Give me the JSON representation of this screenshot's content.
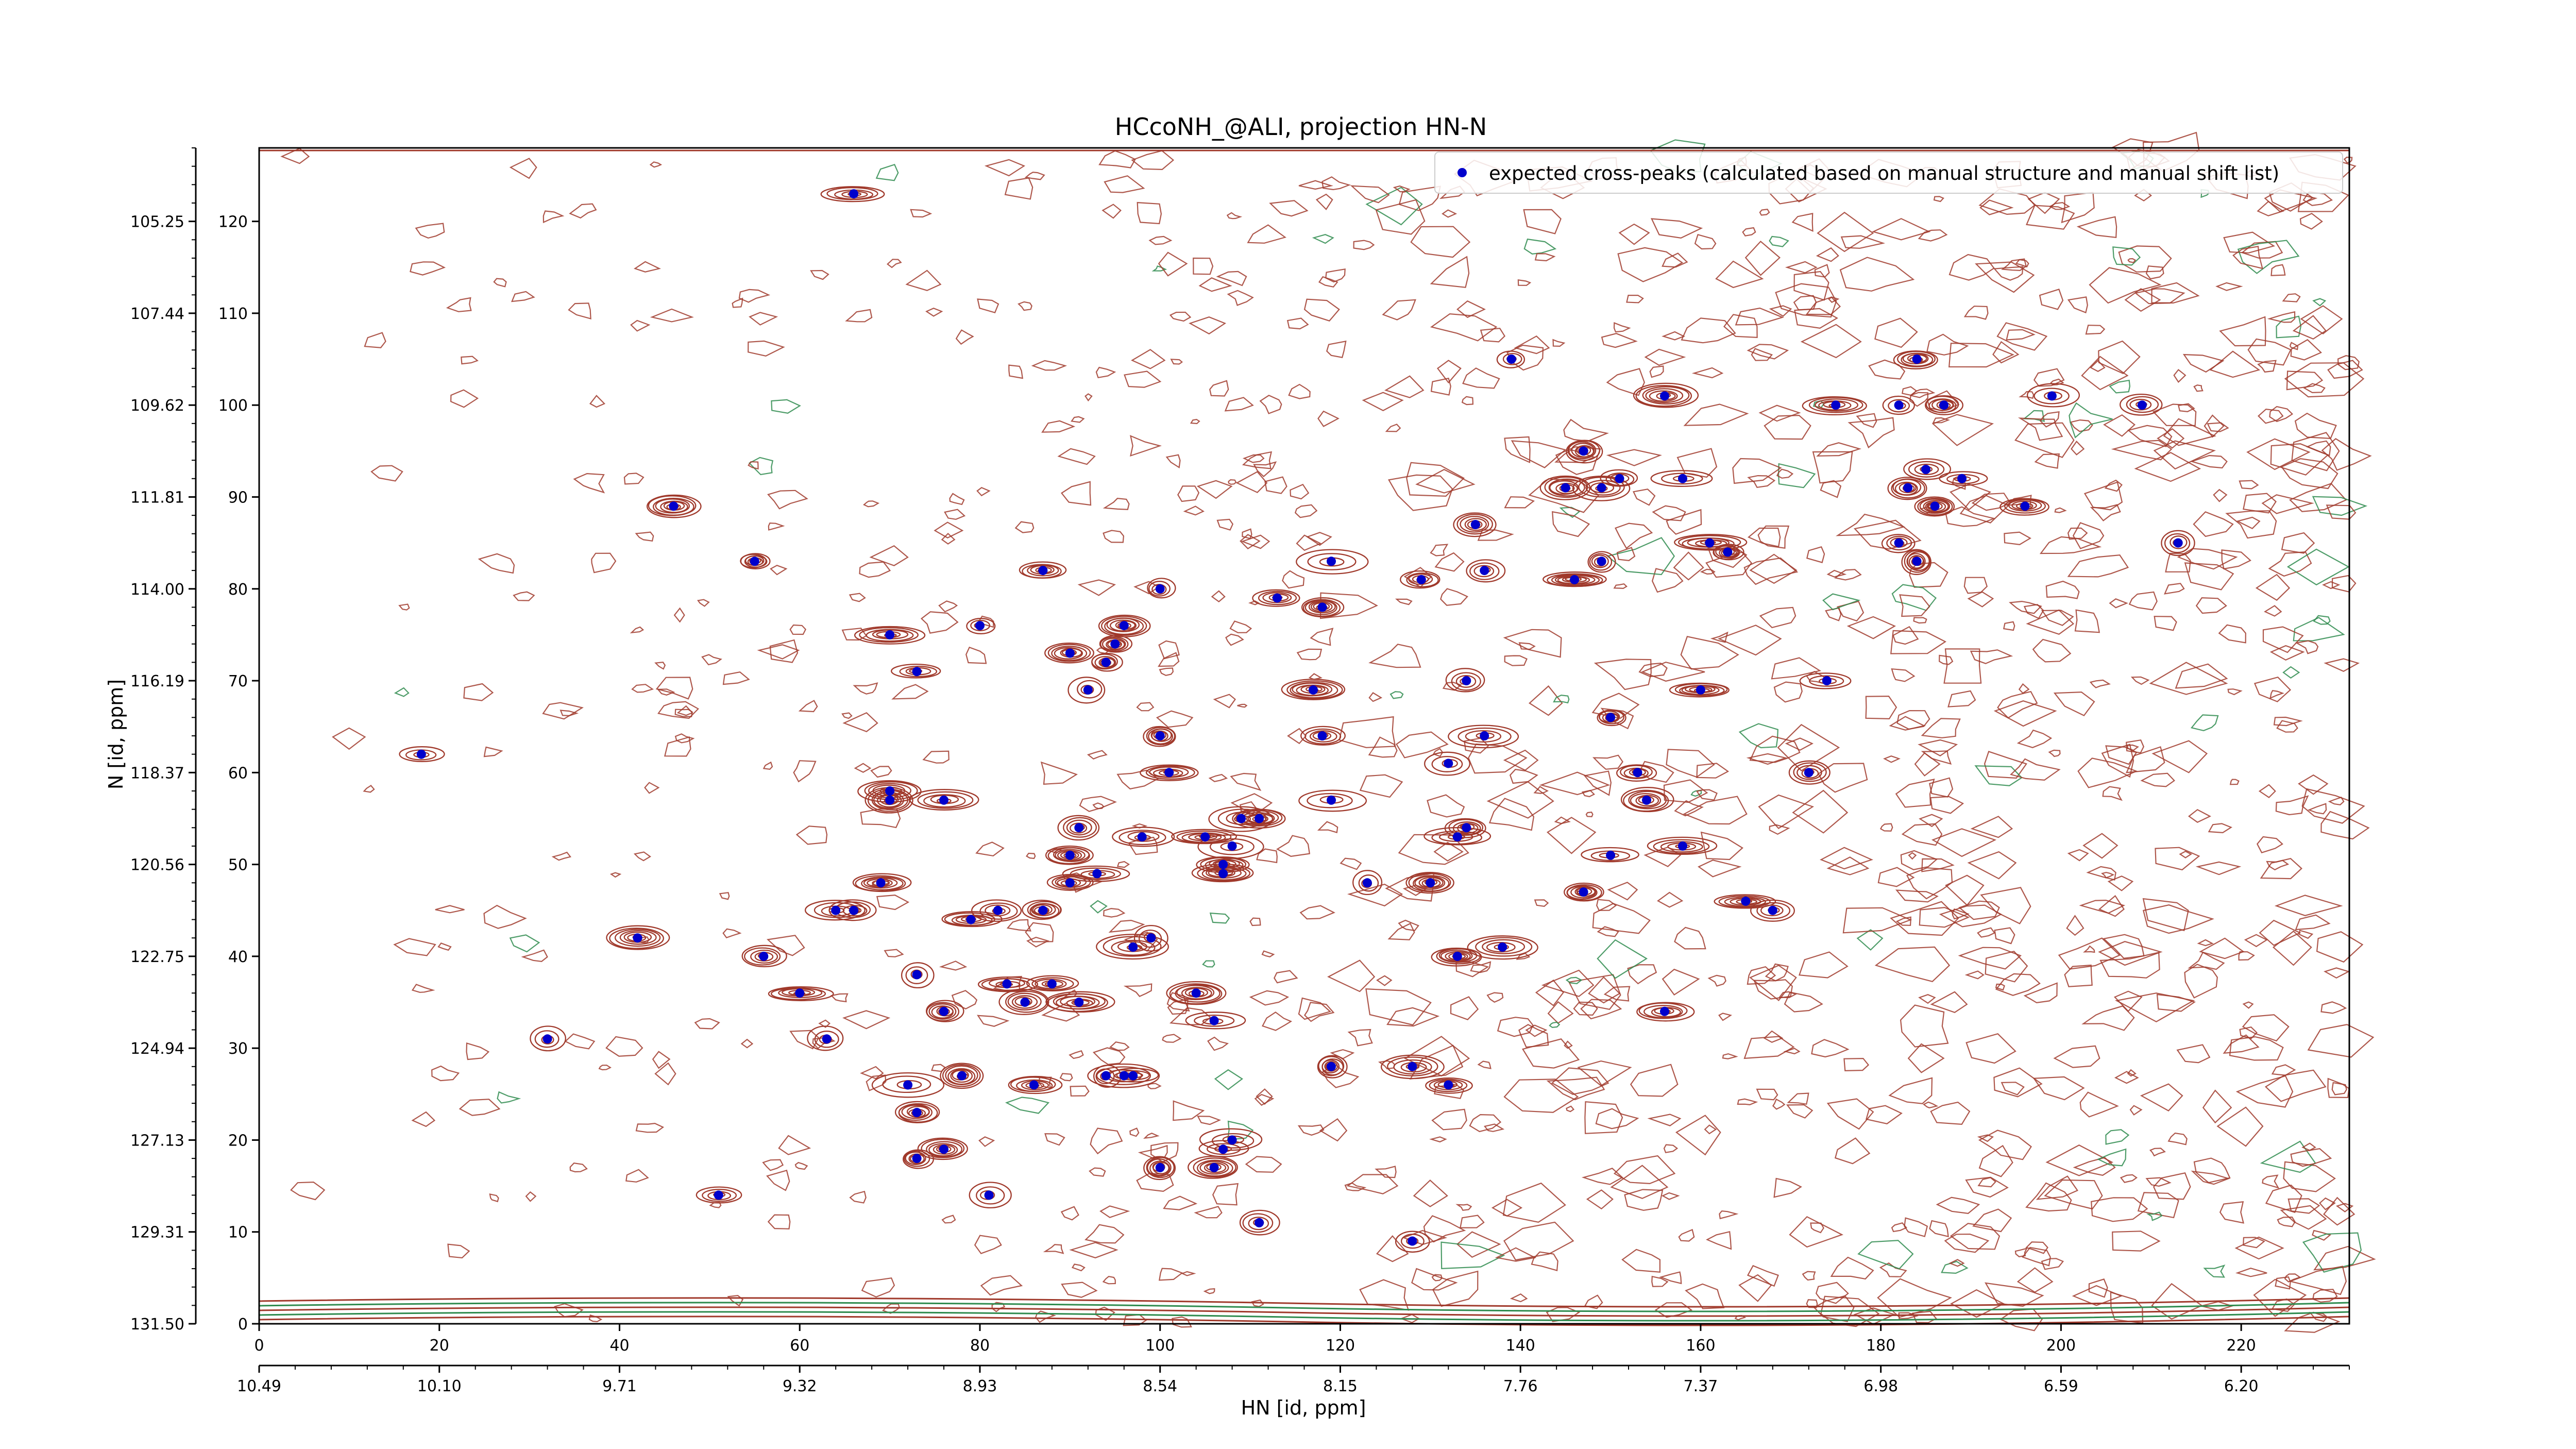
{
  "chart_data": {
    "type": "scatter",
    "title": "HCcoNH_@ALI, projection HN-N",
    "xlabel": "HN [id, ppm]",
    "ylabel": "N [id, ppm]",
    "xlim_index": [
      0,
      232
    ],
    "ylim_index": [
      0,
      128
    ],
    "x_index_ticks": [
      "0",
      "20",
      "40",
      "60",
      "80",
      "100",
      "120",
      "140",
      "160",
      "180",
      "200",
      "220"
    ],
    "x_ppm_ticks": [
      "10.49",
      "10.10",
      "9.71",
      "9.32",
      "8.93",
      "8.54",
      "8.15",
      "7.76",
      "7.37",
      "6.98",
      "6.59",
      "6.20"
    ],
    "y_index_ticks": [
      "0",
      "10",
      "20",
      "30",
      "40",
      "50",
      "60",
      "70",
      "80",
      "90",
      "100",
      "110",
      "120"
    ],
    "y_ppm_ticks": [
      "131.50",
      "129.31",
      "127.13",
      "124.94",
      "122.75",
      "120.56",
      "118.37",
      "116.19",
      "114.00",
      "111.81",
      "109.62",
      "107.44",
      "105.25"
    ],
    "legend": {
      "position": "top-right",
      "label": "expected cross-peaks (calculated based on manual structure and manual shift list)"
    },
    "colors": {
      "marker": "#0000cc",
      "contour_positive": "#a0392b",
      "contour_negative": "#2e8b4e"
    },
    "series": [
      {
        "name": "expected cross-peaks (calculated based on manual structure and manual shift list)",
        "points": [
          [
            66,
            123
          ],
          [
            46,
            89
          ],
          [
            55,
            83
          ],
          [
            18,
            62
          ],
          [
            32,
            31
          ],
          [
            42,
            42
          ],
          [
            56,
            40
          ],
          [
            60,
            36
          ],
          [
            63,
            31
          ],
          [
            51,
            14
          ],
          [
            70,
            75
          ],
          [
            80,
            76
          ],
          [
            70,
            58
          ],
          [
            70,
            57
          ],
          [
            76,
            57
          ],
          [
            73,
            71
          ],
          [
            69,
            48
          ],
          [
            64,
            45
          ],
          [
            66,
            45
          ],
          [
            73,
            38
          ],
          [
            76,
            34
          ],
          [
            87,
            82
          ],
          [
            90,
            73
          ],
          [
            92,
            69
          ],
          [
            96,
            76
          ],
          [
            95,
            74
          ],
          [
            94,
            72
          ],
          [
            100,
            80
          ],
          [
            100,
            64
          ],
          [
            101,
            60
          ],
          [
            98,
            53
          ],
          [
            91,
            54
          ],
          [
            90,
            51
          ],
          [
            93,
            49
          ],
          [
            82,
            45
          ],
          [
            79,
            44
          ],
          [
            87,
            45
          ],
          [
            90,
            48
          ],
          [
            83,
            37
          ],
          [
            85,
            35
          ],
          [
            88,
            37
          ],
          [
            91,
            35
          ],
          [
            94,
            27
          ],
          [
            96,
            27
          ],
          [
            97,
            27
          ],
          [
            78,
            27
          ],
          [
            86,
            26
          ],
          [
            72,
            26
          ],
          [
            73,
            23
          ],
          [
            73,
            18
          ],
          [
            76,
            19
          ],
          [
            81,
            14
          ],
          [
            97,
            41
          ],
          [
            99,
            42
          ],
          [
            104,
            36
          ],
          [
            106,
            33
          ],
          [
            100,
            17
          ],
          [
            106,
            17
          ],
          [
            107,
            19
          ],
          [
            108,
            20
          ],
          [
            111,
            11
          ],
          [
            119,
            83
          ],
          [
            113,
            79
          ],
          [
            118,
            78
          ],
          [
            129,
            81
          ],
          [
            135,
            87
          ],
          [
            136,
            82
          ],
          [
            134,
            70
          ],
          [
            117,
            69
          ],
          [
            118,
            64
          ],
          [
            132,
            61
          ],
          [
            136,
            64
          ],
          [
            105,
            53
          ],
          [
            109,
            55
          ],
          [
            111,
            55
          ],
          [
            107,
            50
          ],
          [
            108,
            52
          ],
          [
            107,
            49
          ],
          [
            119,
            57
          ],
          [
            123,
            48
          ],
          [
            130,
            48
          ],
          [
            134,
            54
          ],
          [
            133,
            53
          ],
          [
            128,
            28
          ],
          [
            119,
            28
          ],
          [
            132,
            26
          ],
          [
            138,
            41
          ],
          [
            133,
            40
          ],
          [
            128,
            9
          ],
          [
            160,
            69
          ],
          [
            150,
            66
          ],
          [
            153,
            60
          ],
          [
            154,
            57
          ],
          [
            150,
            51
          ],
          [
            158,
            52
          ],
          [
            147,
            47
          ],
          [
            165,
            46
          ],
          [
            168,
            45
          ],
          [
            156,
            34
          ],
          [
            139,
            105
          ],
          [
            147,
            95
          ],
          [
            156,
            101
          ],
          [
            145,
            91
          ],
          [
            149,
            91
          ],
          [
            151,
            92
          ],
          [
            158,
            92
          ],
          [
            149,
            83
          ],
          [
            146,
            81
          ],
          [
            161,
            85
          ],
          [
            163,
            84
          ],
          [
            175,
            100
          ],
          [
            182,
            100
          ],
          [
            184,
            105
          ],
          [
            187,
            100
          ],
          [
            183,
            91
          ],
          [
            185,
            93
          ],
          [
            186,
            89
          ],
          [
            189,
            92
          ],
          [
            196,
            89
          ],
          [
            199,
            101
          ],
          [
            209,
            100
          ],
          [
            213,
            85
          ],
          [
            182,
            85
          ],
          [
            184,
            83
          ],
          [
            174,
            70
          ],
          [
            172,
            60
          ]
        ]
      }
    ]
  }
}
